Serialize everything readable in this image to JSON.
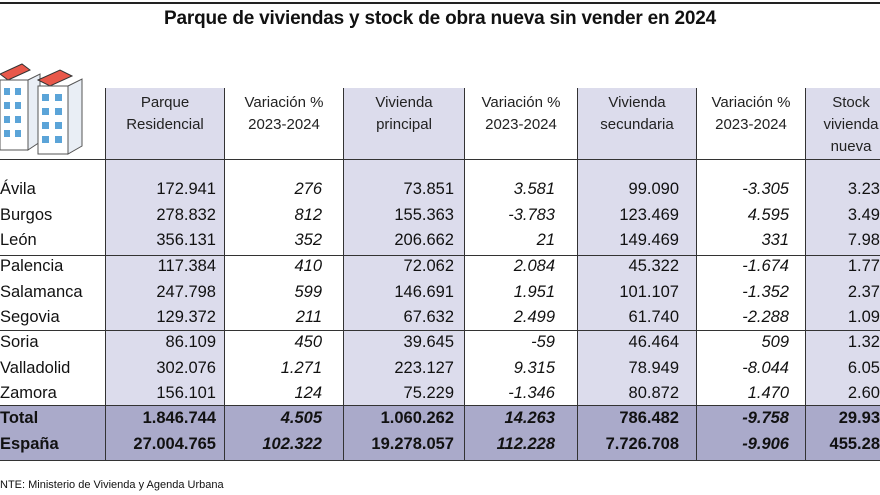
{
  "title": "Parque de viviendas y stock de obra nueva sin vender en 2024",
  "headers": {
    "parque": [
      "Parque",
      "Residencial"
    ],
    "var1": [
      "Variación %",
      "2023-2024"
    ],
    "principal": [
      "Vivienda",
      "principal"
    ],
    "var2": [
      "Variación %",
      "2023-2024"
    ],
    "secundaria": [
      "Vivienda",
      "secundaria"
    ],
    "var3": [
      "Variación %",
      "2023-2024"
    ],
    "stock": [
      "Stock",
      "vivienda",
      "nueva"
    ]
  },
  "rows": [
    {
      "name": "Ávila",
      "parque": "172.941",
      "var1": "276",
      "principal": "73.851",
      "var2": "3.581",
      "secundaria": "99.090",
      "var3": "-3.305",
      "stock": "3.23"
    },
    {
      "name": "Burgos",
      "parque": "278.832",
      "var1": "812",
      "principal": "155.363",
      "var2": "-3.783",
      "secundaria": "123.469",
      "var3": "4.595",
      "stock": "3.49"
    },
    {
      "name": "León",
      "parque": "356.131",
      "var1": "352",
      "principal": "206.662",
      "var2": "21",
      "secundaria": "149.469",
      "var3": "331",
      "stock": "7.98"
    },
    {
      "name": "Palencia",
      "parque": "117.384",
      "var1": "410",
      "principal": "72.062",
      "var2": "2.084",
      "secundaria": "45.322",
      "var3": "-1.674",
      "stock": "1.77"
    },
    {
      "name": "Salamanca",
      "parque": "247.798",
      "var1": "599",
      "principal": "146.691",
      "var2": "1.951",
      "secundaria": "101.107",
      "var3": "-1.352",
      "stock": "2.37"
    },
    {
      "name": "Segovia",
      "parque": "129.372",
      "var1": "211",
      "principal": "67.632",
      "var2": "2.499",
      "secundaria": "61.740",
      "var3": "-2.288",
      "stock": "1.09"
    },
    {
      "name": "Soria",
      "parque": "86.109",
      "var1": "450",
      "principal": "39.645",
      "var2": "-59",
      "secundaria": "46.464",
      "var3": "509",
      "stock": "1.32"
    },
    {
      "name": "Valladolid",
      "parque": "302.076",
      "var1": "1.271",
      "principal": "223.127",
      "var2": "9.315",
      "secundaria": "78.949",
      "var3": "-8.044",
      "stock": "6.05"
    },
    {
      "name": "Zamora",
      "parque": "156.101",
      "var1": "124",
      "principal": "75.229",
      "var2": "-1.346",
      "secundaria": "80.872",
      "var3": "1.470",
      "stock": "2.60"
    }
  ],
  "totals": [
    {
      "name": "Total",
      "parque": "1.846.744",
      "var1": "4.505",
      "principal": "1.060.262",
      "var2": "14.263",
      "secundaria": "786.482",
      "var3": "-9.758",
      "stock": "29.93"
    },
    {
      "name": "España",
      "parque": "27.004.765",
      "var1": "102.322",
      "principal": "19.278.057",
      "var2": "112.228",
      "secundaria": "7.726.708",
      "var3": "-9.906",
      "stock": "455.28"
    }
  ],
  "source": "NTE: Ministerio de Vivienda y Agenda Urbana",
  "colors": {
    "column_band": "#dcdcec",
    "total_band": "#aaaaca",
    "icon_roof": "#e8584a",
    "icon_window": "#5ba4d8"
  }
}
